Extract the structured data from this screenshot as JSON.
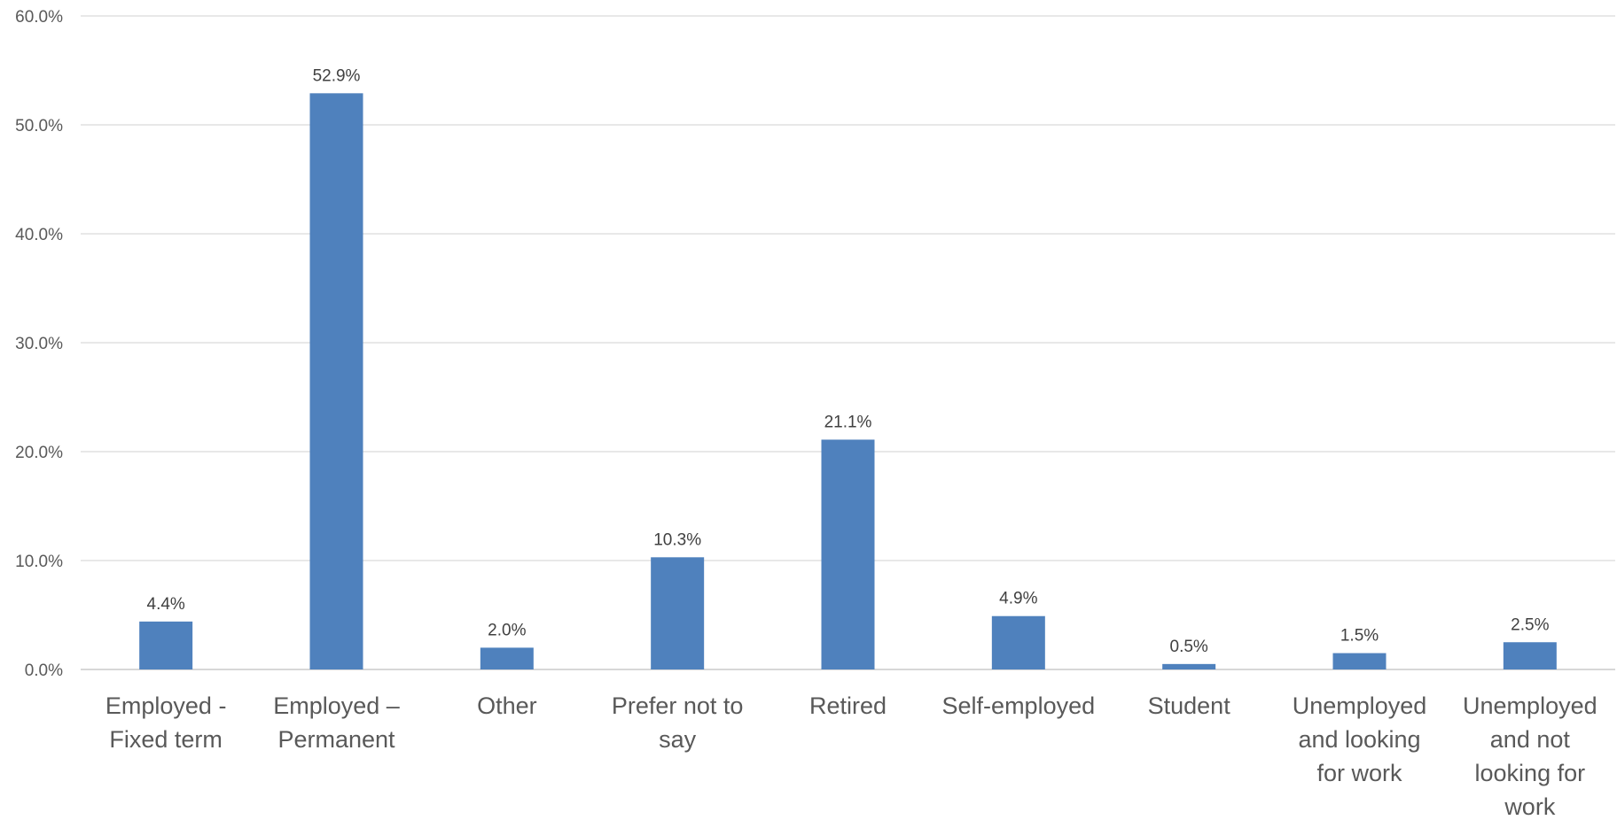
{
  "chart_data": {
    "type": "bar",
    "categories": [
      [
        "Employed -",
        "Fixed term"
      ],
      [
        "Employed –",
        "Permanent"
      ],
      [
        "Other"
      ],
      [
        "Prefer not to",
        "say"
      ],
      [
        "Retired"
      ],
      [
        "Self-employed"
      ],
      [
        "Student"
      ],
      [
        "Unemployed",
        "and looking",
        "for work"
      ],
      [
        "Unemployed",
        "and not",
        "looking for",
        "work"
      ]
    ],
    "values": [
      4.4,
      52.9,
      2.0,
      10.3,
      21.1,
      4.9,
      0.5,
      1.5,
      2.5
    ],
    "value_labels": [
      "4.4%",
      "52.9%",
      "2.0%",
      "10.3%",
      "21.1%",
      "4.9%",
      "0.5%",
      "1.5%",
      "2.5%"
    ],
    "yticks": [
      0,
      10,
      20,
      30,
      40,
      50,
      60
    ],
    "ytick_labels": [
      "0.0%",
      "10.0%",
      "20.0%",
      "30.0%",
      "40.0%",
      "50.0%",
      "60.0%"
    ],
    "ylim": [
      0,
      60
    ],
    "grid": true,
    "bar_color": "#4f81bd",
    "title": "",
    "xlabel": "",
    "ylabel": ""
  }
}
